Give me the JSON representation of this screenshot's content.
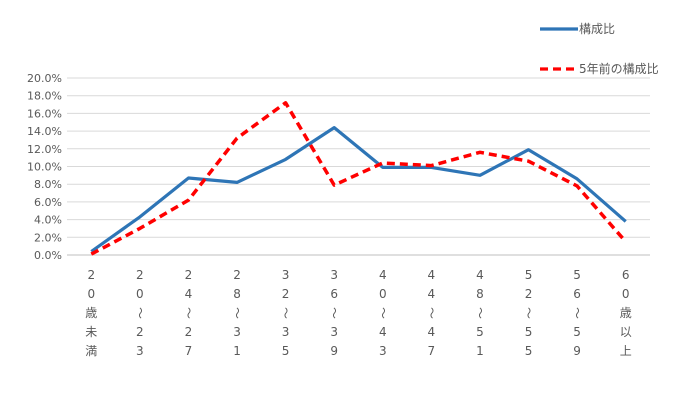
{
  "chart_data": {
    "type": "line",
    "categories": [
      "20歳未満",
      "20〜23",
      "24〜27",
      "28〜31",
      "32〜35",
      "36〜39",
      "40〜43",
      "44〜47",
      "48〜51",
      "52〜55",
      "56〜59",
      "60歳以上"
    ],
    "category_display": [
      [
        "2",
        "0",
        "歳",
        "未",
        "満"
      ],
      [
        "2",
        "0",
        "〜",
        "2",
        "3"
      ],
      [
        "2",
        "4",
        "〜",
        "2",
        "7"
      ],
      [
        "2",
        "8",
        "〜",
        "3",
        "1"
      ],
      [
        "3",
        "2",
        "〜",
        "3",
        "5"
      ],
      [
        "3",
        "6",
        "〜",
        "3",
        "9"
      ],
      [
        "4",
        "0",
        "〜",
        "4",
        "3"
      ],
      [
        "4",
        "4",
        "〜",
        "4",
        "7"
      ],
      [
        "4",
        "8",
        "〜",
        "5",
        "1"
      ],
      [
        "5",
        "2",
        "〜",
        "5",
        "5"
      ],
      [
        "5",
        "6",
        "〜",
        "5",
        "9"
      ],
      [
        "6",
        "0",
        "歳",
        "以",
        "上"
      ]
    ],
    "series": [
      {
        "name": "構成比",
        "color": "#2e75b6",
        "dash": "solid",
        "values": [
          0.4,
          4.3,
          8.7,
          8.2,
          10.8,
          14.4,
          9.9,
          9.9,
          9.0,
          11.9,
          8.6,
          3.8
        ]
      },
      {
        "name": "5年前の構成比",
        "color": "#ff0000",
        "dash": "dashed",
        "values": [
          0.1,
          3.0,
          6.2,
          13.2,
          17.2,
          7.9,
          10.4,
          10.1,
          11.6,
          10.6,
          7.8,
          1.5
        ]
      }
    ],
    "y_ticks": [
      "0.0%",
      "2.0%",
      "4.0%",
      "6.0%",
      "8.0%",
      "10.0%",
      "12.0%",
      "14.0%",
      "16.0%",
      "18.0%",
      "20.0%"
    ],
    "ylim": [
      0,
      20
    ],
    "grid": true,
    "legend_position": "top-right"
  }
}
